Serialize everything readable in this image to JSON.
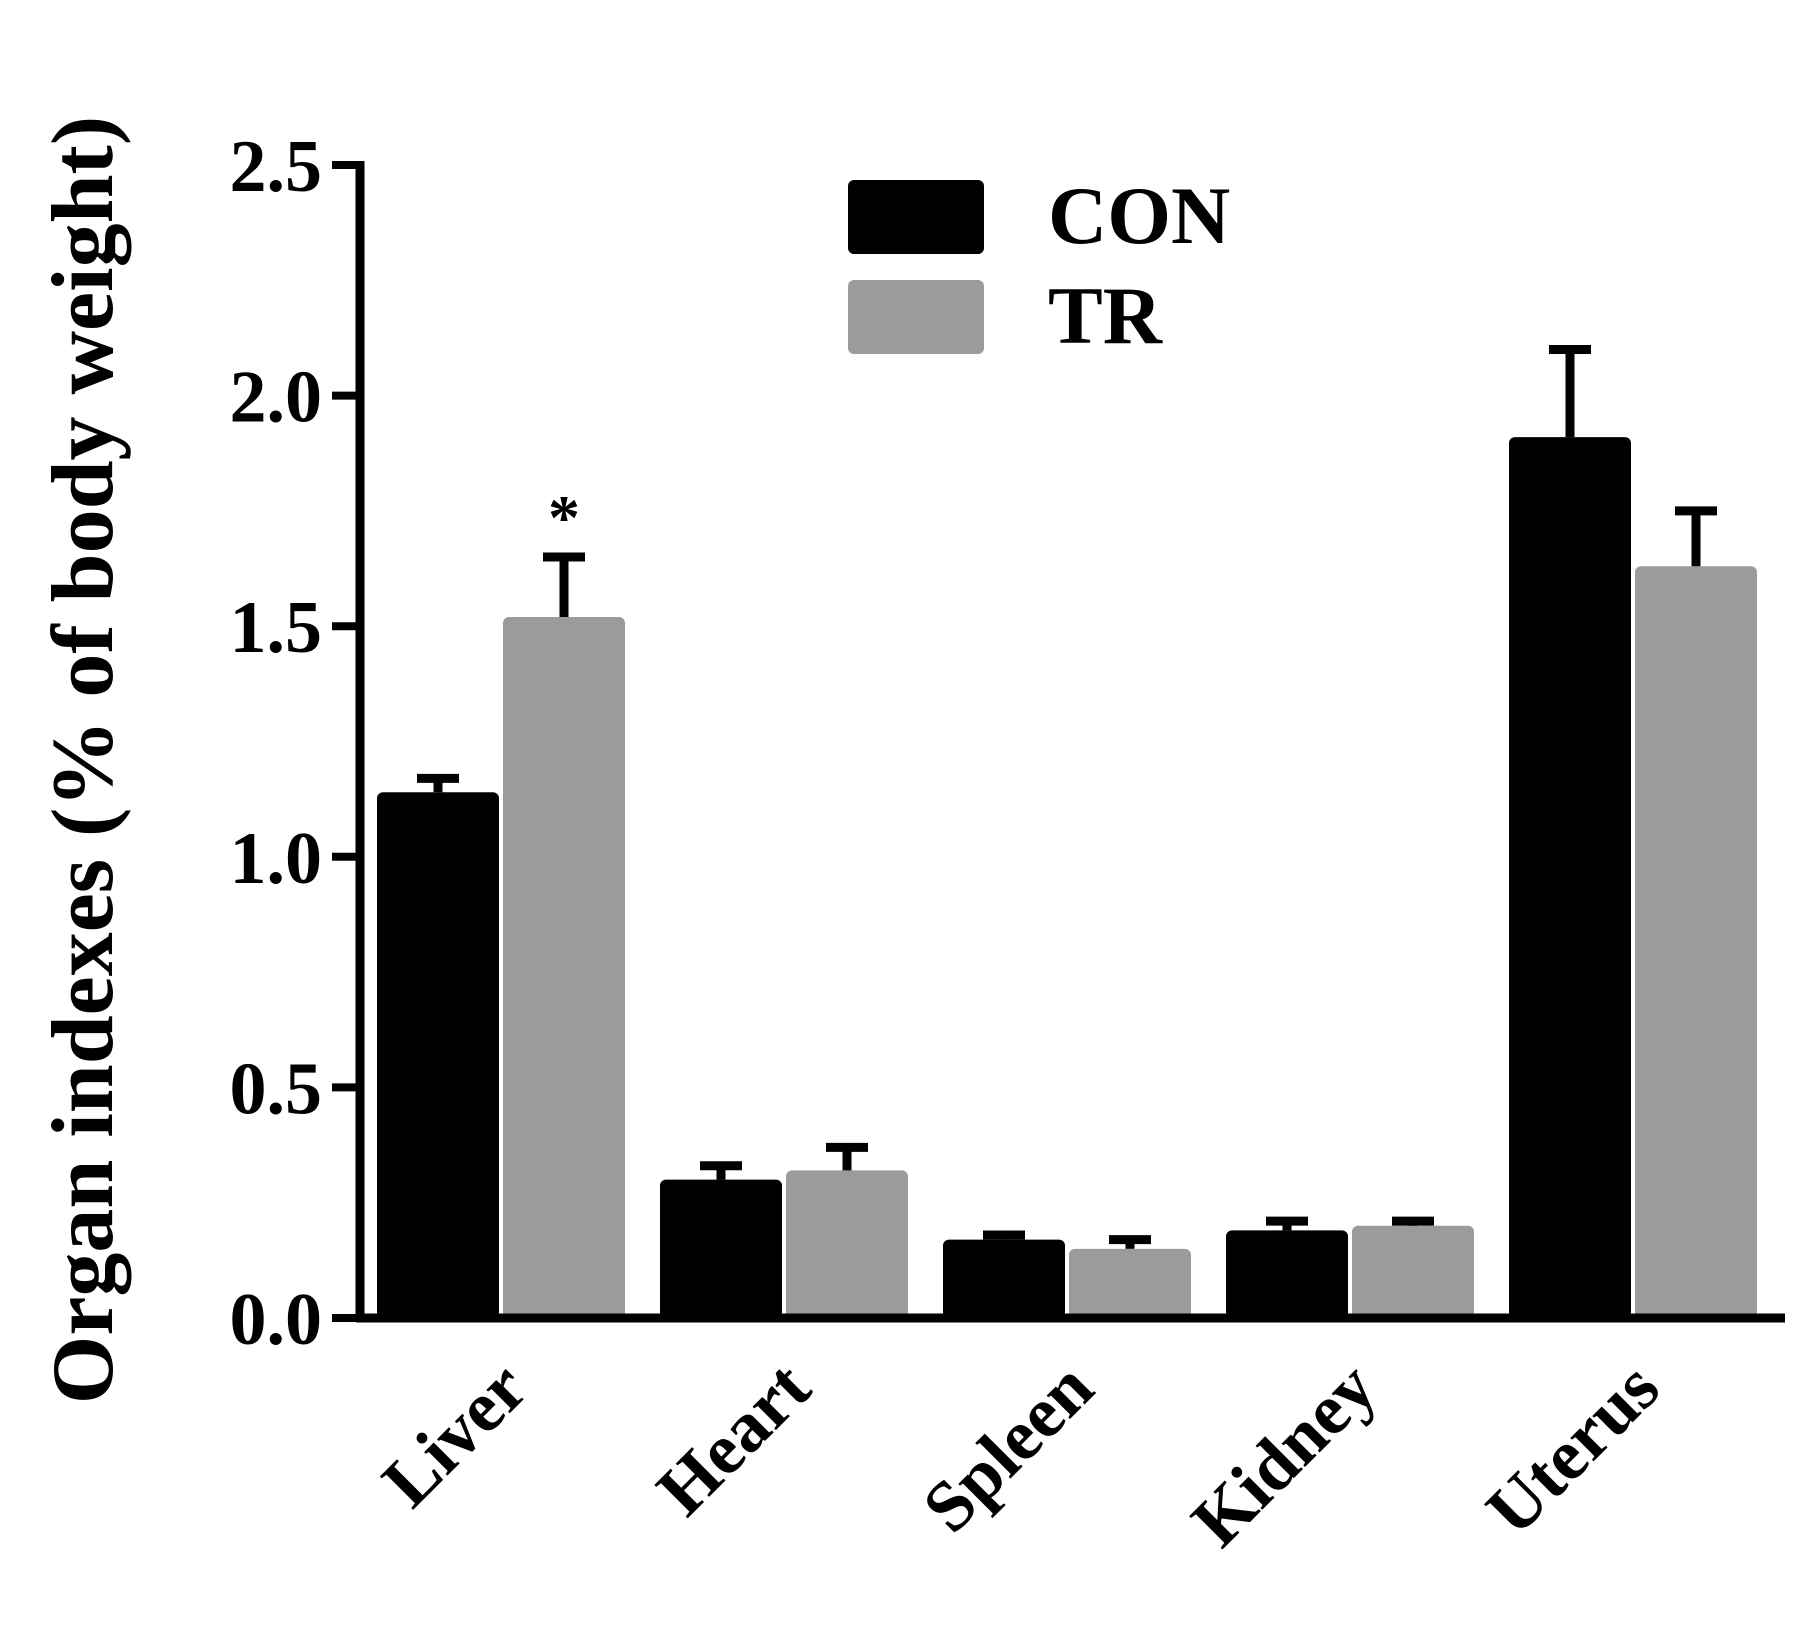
{
  "chart_data": {
    "type": "bar",
    "title": "",
    "xlabel": "",
    "ylabel": "Organ indexes (% of body weight)",
    "ylim": [
      0,
      2.5
    ],
    "yticks": [
      "0.0",
      "0.5",
      "1.0",
      "1.5",
      "2.0",
      "2.5"
    ],
    "ytick_values": [
      0,
      0.5,
      1.0,
      1.5,
      2.0,
      2.5
    ],
    "categories": [
      "Liver",
      "Heart",
      "Spleen",
      "Kidney",
      "Uterus"
    ],
    "series": [
      {
        "name": "CON",
        "color": "#000000",
        "values": [
          1.14,
          0.3,
          0.17,
          0.19,
          1.91
        ],
        "errors": [
          0.03,
          0.03,
          0.01,
          0.02,
          0.19
        ]
      },
      {
        "name": "TR",
        "color": "#9b9b9b",
        "values": [
          1.52,
          0.32,
          0.15,
          0.2,
          1.63
        ],
        "errors": [
          0.13,
          0.05,
          0.02,
          0.01,
          0.12
        ]
      }
    ],
    "annotations": [
      {
        "text": "*",
        "category": "Liver",
        "series": "TR"
      }
    ],
    "legend": {
      "position": "top-center"
    },
    "grid": false
  }
}
